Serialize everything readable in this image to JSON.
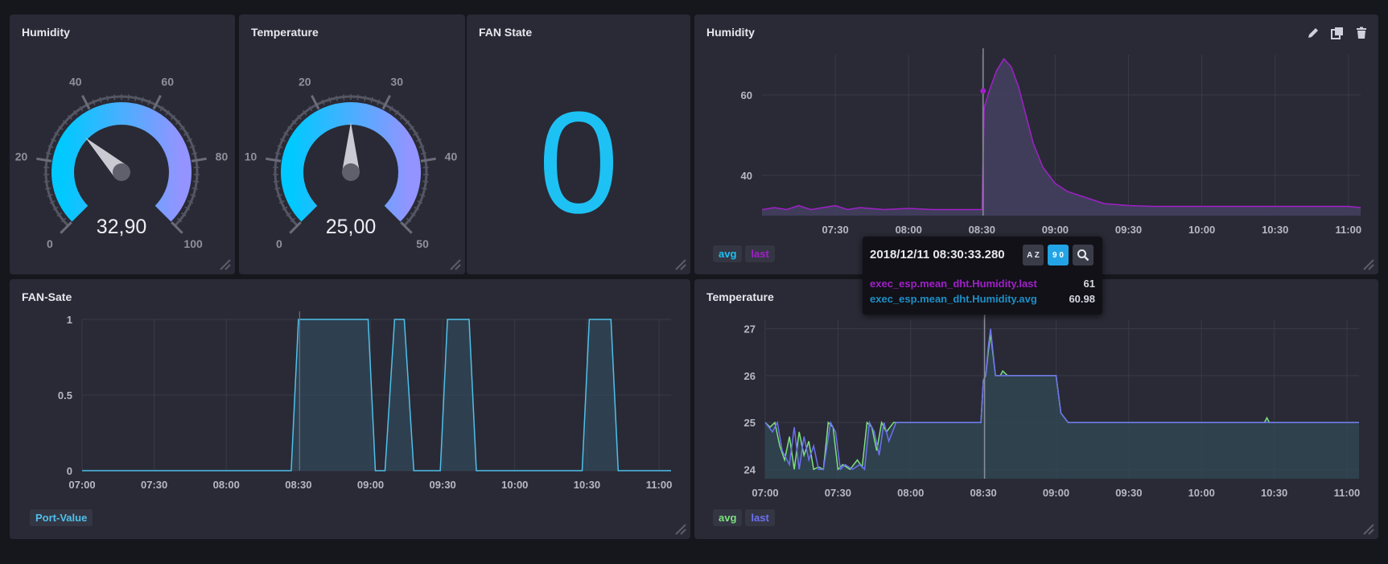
{
  "colors": {
    "background": "#16161d",
    "panel": "#292a35",
    "gauge_start": "#00c9ff",
    "gauge_end": "#9394ff",
    "fan_value": "#1ec1f4",
    "series_last_humidity": "#a020c8",
    "series_avg_temp": "#7ee07e",
    "series_last_temp": "#6d70f0",
    "series_port": "#4fc0ea"
  },
  "gauges": [
    {
      "title": "Humidity",
      "min": 0,
      "max": 100,
      "value": 32.9,
      "value_label": "32,90",
      "ticks": [
        {
          "label": "0",
          "value": 0
        },
        {
          "label": "20",
          "value": 20
        },
        {
          "label": "40",
          "value": 40
        },
        {
          "label": "60",
          "value": 60
        },
        {
          "label": "80",
          "value": 80
        },
        {
          "label": "100",
          "value": 100
        }
      ]
    },
    {
      "title": "Temperature",
      "min": 0,
      "max": 50,
      "value": 25,
      "value_label": "25,00",
      "ticks": [
        {
          "label": "0",
          "value": 0
        },
        {
          "label": "10",
          "value": 10
        },
        {
          "label": "20",
          "value": 20
        },
        {
          "label": "30",
          "value": 30
        },
        {
          "label": "40",
          "value": 40
        },
        {
          "label": "50",
          "value": 50
        }
      ]
    }
  ],
  "fan_state": {
    "title": "FAN State",
    "value": "0"
  },
  "humidity_graph": {
    "title": "Humidity",
    "legend": [
      {
        "label": "avg",
        "color": "#1ec1f4"
      },
      {
        "label": "last",
        "color": "#a020c8"
      }
    ],
    "tools": [
      "pencil-icon",
      "copy-icon",
      "trash-icon"
    ]
  },
  "fan_graph": {
    "title": "FAN-Sate",
    "legend": [
      {
        "label": "Port-Value",
        "color": "#4fc0ea"
      }
    ]
  },
  "temperature_graph": {
    "title": "Temperature",
    "legend": [
      {
        "label": "avg",
        "color": "#7ee07e"
      },
      {
        "label": "last",
        "color": "#6d70f0"
      }
    ]
  },
  "tooltip": {
    "time": "2018/12/11 08:30:33.280",
    "sort_alpha_label": "A Z",
    "sort_num_label": "9 0",
    "rows": [
      {
        "name": "exec_esp.mean_dht.Humidity.last",
        "value": "61",
        "color": "#a020c8"
      },
      {
        "name": "exec_esp.mean_dht.Humidity.avg",
        "value": "60.98",
        "color": "#1e8fc8"
      }
    ]
  },
  "chart_data": [
    {
      "type": "area",
      "title": "Humidity",
      "x_ticks": [
        "07:30",
        "08:00",
        "08:30",
        "09:00",
        "09:30",
        "10:00",
        "10:30",
        "11:00"
      ],
      "y_ticks": [
        "40",
        "60"
      ],
      "xlim_minutes": [
        420,
        665
      ],
      "ylim": [
        30,
        70
      ],
      "series": [
        {
          "name": "last",
          "x_minutes": [
            420,
            425,
            430,
            435,
            440,
            445,
            450,
            455,
            460,
            470,
            480,
            490,
            500,
            505,
            510,
            511,
            513,
            516,
            519,
            522,
            525,
            528,
            531,
            535,
            540,
            545,
            550,
            555,
            560,
            570,
            580,
            600,
            620,
            640,
            660,
            665
          ],
          "values": [
            31.5,
            32,
            31.5,
            32.5,
            31.5,
            32,
            32.5,
            31.5,
            32,
            31.5,
            31.8,
            31.5,
            31.5,
            31.5,
            31.5,
            57,
            61,
            66,
            69,
            67,
            62,
            55,
            48,
            42,
            38,
            36,
            35,
            34,
            33,
            32.5,
            32.3,
            32.3,
            32.3,
            32.3,
            32.3,
            32
          ]
        }
      ],
      "tooltip_x_minutes": 510.5
    },
    {
      "type": "line",
      "title": "FAN-Sate",
      "x_ticks": [
        "07:00",
        "07:30",
        "08:00",
        "08:30",
        "09:00",
        "09:30",
        "10:00",
        "10:30",
        "11:00"
      ],
      "y_ticks": [
        "0",
        "0.5",
        "1"
      ],
      "xlim_minutes": [
        420,
        665
      ],
      "ylim": [
        0,
        1
      ],
      "series": [
        {
          "name": "Port-Value",
          "x_minutes": [
            420,
            507,
            510,
            539,
            542,
            546,
            550,
            554,
            558,
            569,
            572,
            581,
            584,
            628,
            631,
            640,
            643,
            665
          ],
          "values": [
            0,
            0,
            1,
            1,
            0,
            0,
            1,
            1,
            0,
            0,
            1,
            1,
            0,
            0,
            1,
            1,
            0,
            0
          ]
        }
      ]
    },
    {
      "type": "area",
      "title": "Temperature",
      "x_ticks": [
        "07:00",
        "07:30",
        "08:00",
        "08:30",
        "09:00",
        "09:30",
        "10:00",
        "10:30",
        "11:00"
      ],
      "y_ticks": [
        "24",
        "25",
        "26",
        "27"
      ],
      "xlim_minutes": [
        420,
        665
      ],
      "ylim": [
        23.8,
        27.2
      ],
      "series": [
        {
          "name": "avg",
          "x_minutes": [
            420,
            422,
            424,
            426,
            428,
            430,
            432,
            434,
            436,
            438,
            440,
            442,
            444,
            446,
            448,
            450,
            452,
            455,
            458,
            460,
            462,
            464,
            466,
            468,
            470,
            473,
            476,
            480,
            490,
            500,
            506,
            509,
            510,
            511,
            512,
            513,
            515,
            517,
            518,
            520,
            525,
            530,
            535,
            540,
            542,
            545,
            560,
            580,
            600,
            620,
            626,
            627,
            628,
            640,
            660,
            665
          ],
          "values": [
            25,
            24.9,
            25,
            24.5,
            24.2,
            24.7,
            24,
            24.8,
            24.3,
            24.6,
            24,
            24.05,
            24,
            25,
            24.9,
            24,
            24.1,
            24,
            24.2,
            24.05,
            25,
            24.9,
            24.4,
            25,
            24.8,
            25,
            25,
            25,
            25,
            25,
            25,
            25,
            25.9,
            26,
            26.5,
            26.9,
            26,
            26,
            26.1,
            26,
            26,
            26,
            26,
            26,
            25.2,
            25,
            25,
            25,
            25,
            25,
            25,
            25.1,
            25,
            25,
            25,
            25
          ]
        },
        {
          "name": "last",
          "x_minutes": [
            420,
            423,
            425,
            427,
            430,
            432,
            434,
            436,
            438,
            440,
            442,
            444,
            447,
            449,
            451,
            453,
            456,
            459,
            461,
            463,
            465,
            467,
            469,
            471,
            474,
            480,
            490,
            500,
            506,
            509,
            510,
            511,
            512,
            513,
            515,
            517,
            520,
            530,
            540,
            542,
            545,
            560,
            580,
            600,
            620,
            640,
            660,
            665
          ],
          "values": [
            25,
            24.8,
            25,
            24.4,
            24.1,
            24.9,
            24,
            24.7,
            24.2,
            24.5,
            24,
            24,
            25,
            24.8,
            24,
            24.1,
            24,
            24.1,
            24,
            25,
            24.8,
            24.3,
            25,
            24.6,
            25,
            25,
            25,
            25,
            25,
            25,
            25.9,
            26,
            26.6,
            27,
            26,
            26,
            26,
            26,
            26,
            25.2,
            25,
            25,
            25,
            25,
            25,
            25,
            25,
            25
          ]
        }
      ],
      "tooltip_x_minutes": 510.5
    }
  ]
}
